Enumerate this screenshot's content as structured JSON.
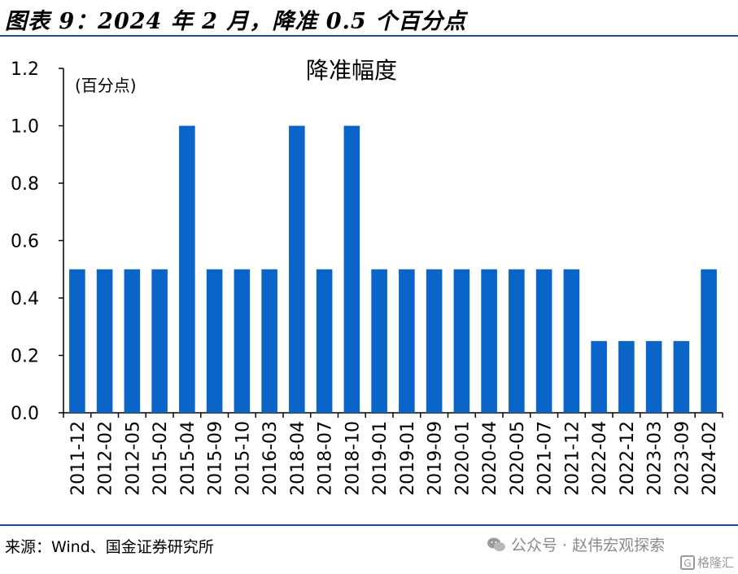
{
  "figure": {
    "title": "图表 9：2024 年 2 月，降准 0.5 个百分点",
    "source": "来源：Wind、国金证券研究所"
  },
  "watermark": {
    "icon": "wechat-icon",
    "text": "公众号 · 赵伟宏观探索",
    "corner_text": "格隆汇"
  },
  "chart_data": {
    "type": "bar",
    "title": "降准幅度",
    "unit_label": "(百分点)",
    "xlabel": "",
    "ylabel": "",
    "ylim": [
      0,
      1.2
    ],
    "yticks": [
      "0.0",
      "0.2",
      "0.4",
      "0.6",
      "0.8",
      "1.0",
      "1.2"
    ],
    "grid": false,
    "legend": "none",
    "bar_color": "#0b64c8",
    "categories": [
      "2011-12",
      "2012-02",
      "2012-05",
      "2015-02",
      "2015-04",
      "2015-09",
      "2015-10",
      "2016-03",
      "2018-04",
      "2018-07",
      "2018-10",
      "2019-01",
      "2019-01",
      "2019-09",
      "2020-01",
      "2020-04",
      "2020-05",
      "2021-07",
      "2021-12",
      "2022-04",
      "2022-12",
      "2023-03",
      "2023-09",
      "2024-02"
    ],
    "values": [
      0.5,
      0.5,
      0.5,
      0.5,
      1.0,
      0.5,
      0.5,
      0.5,
      1.0,
      0.5,
      1.0,
      0.5,
      0.5,
      0.5,
      0.5,
      0.5,
      0.5,
      0.5,
      0.5,
      0.25,
      0.25,
      0.25,
      0.25,
      0.5
    ]
  }
}
